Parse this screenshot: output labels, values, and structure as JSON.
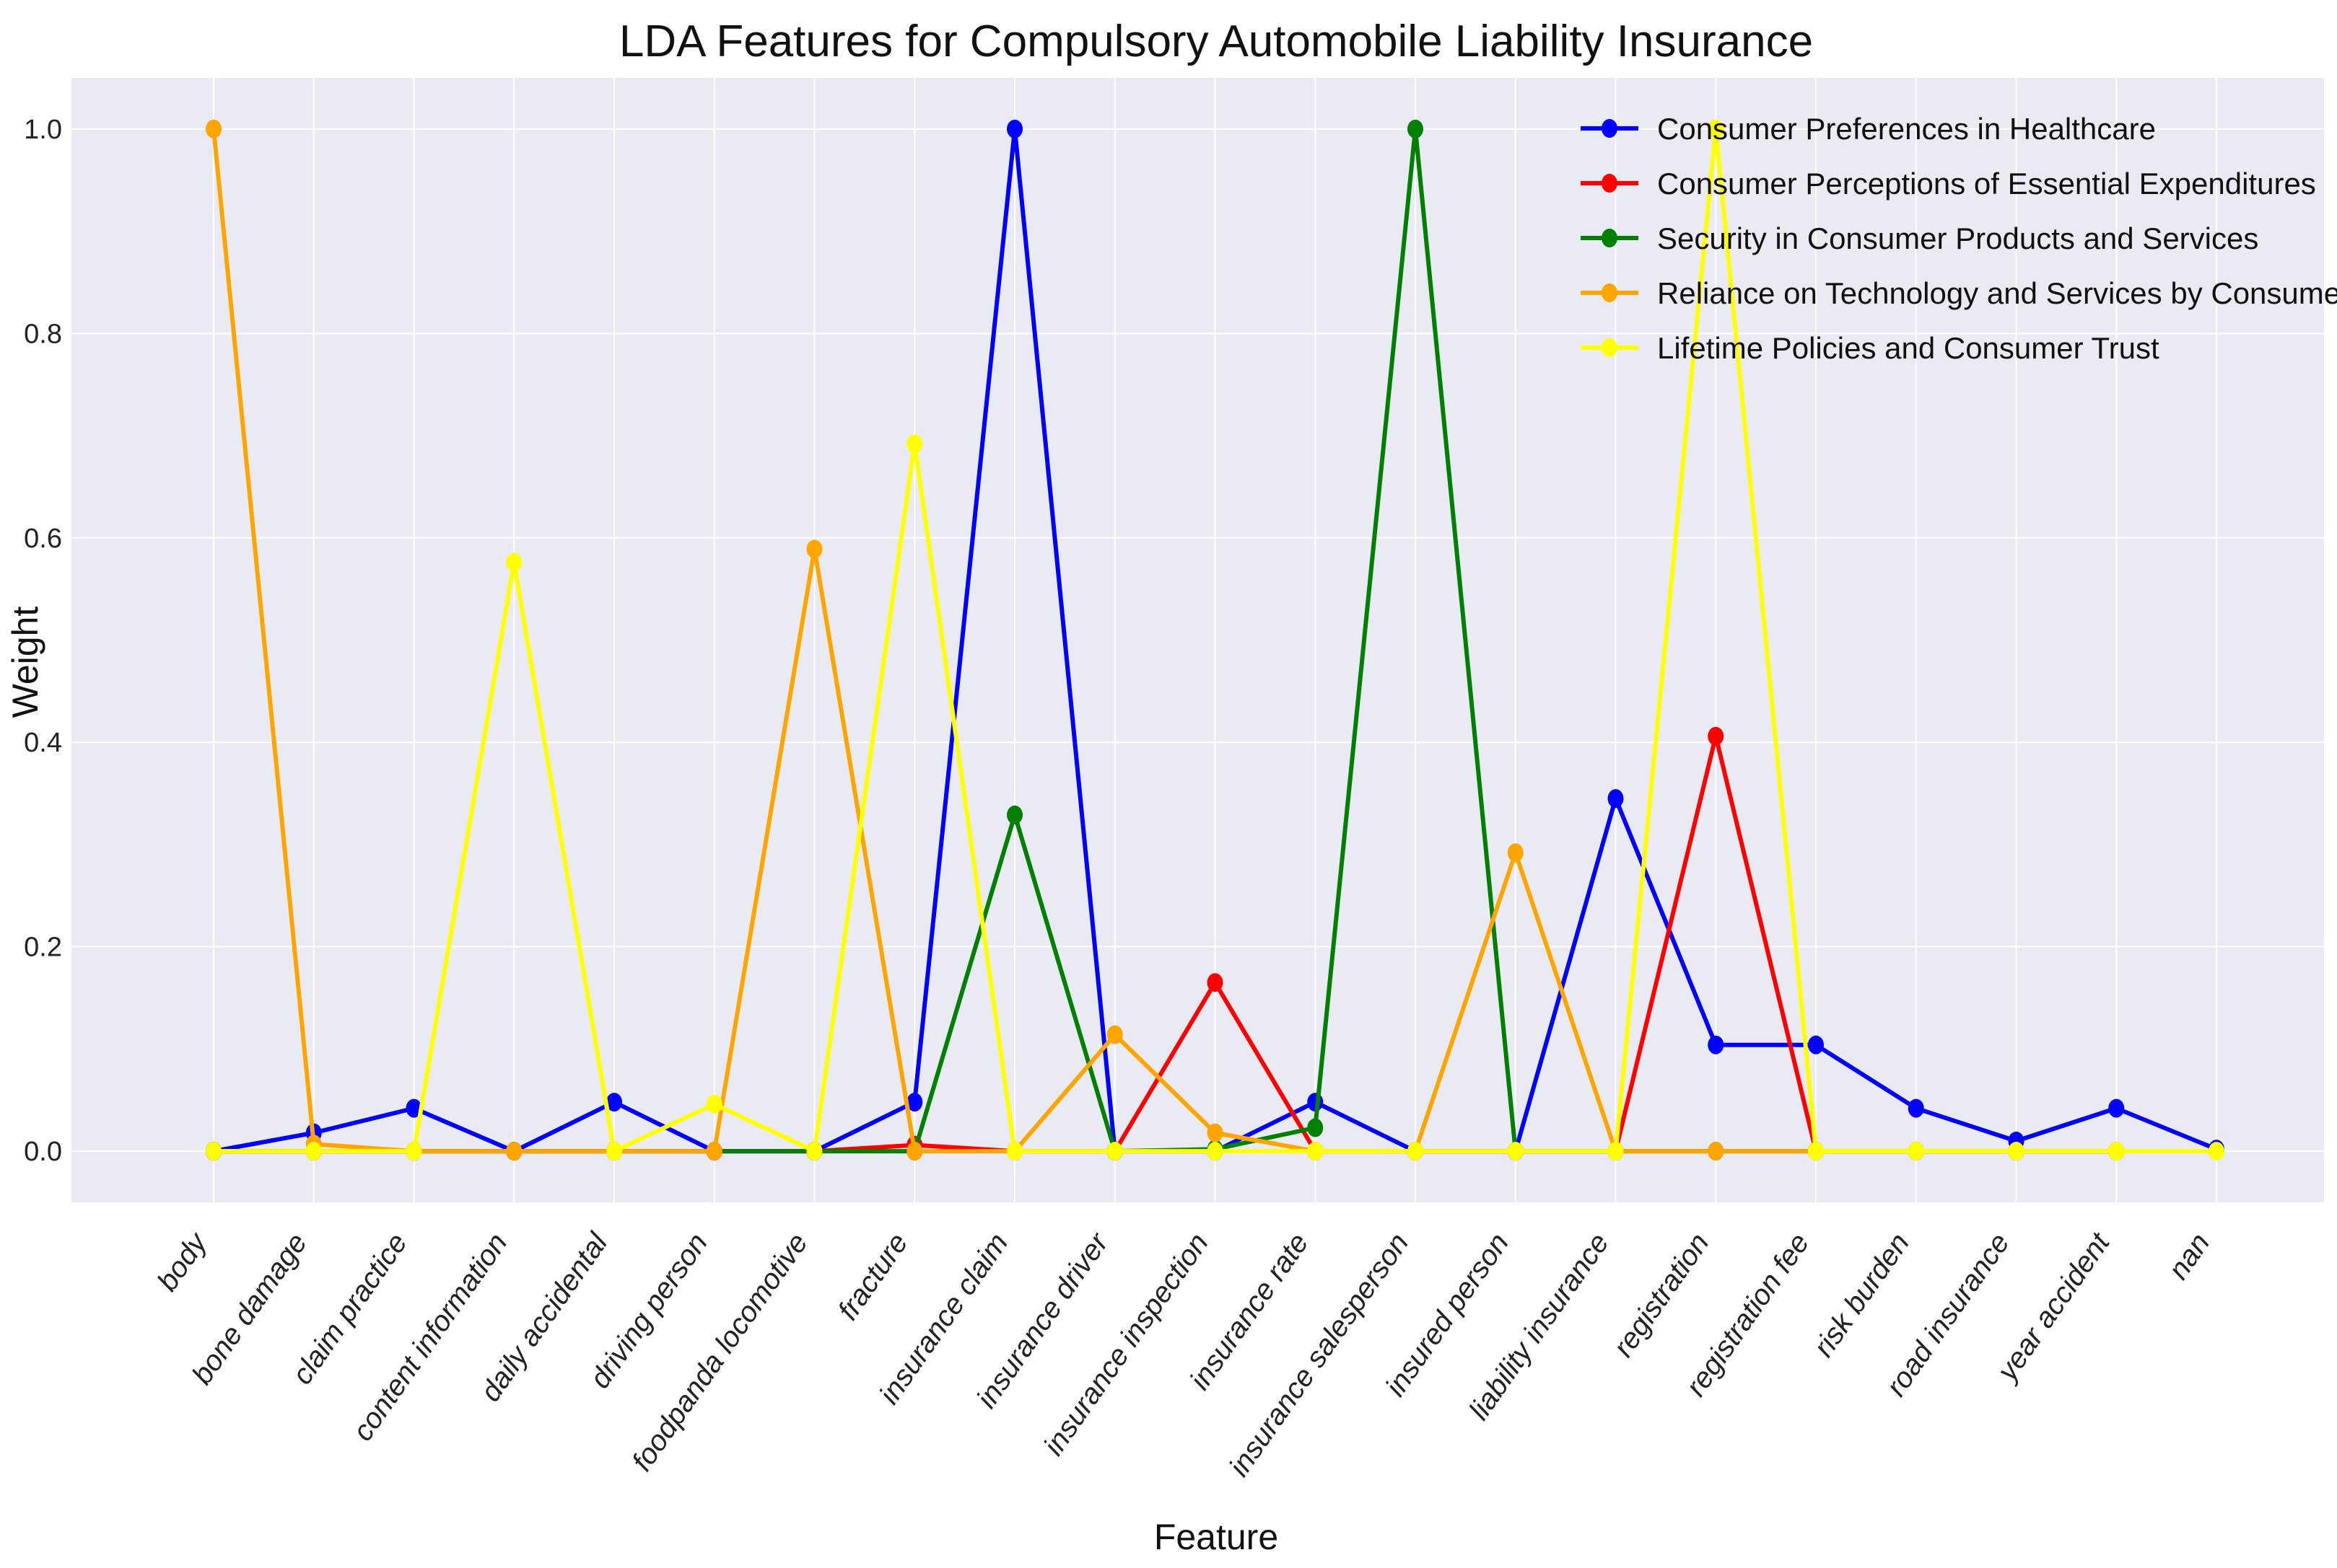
{
  "chart_data": {
    "type": "line",
    "title": "LDA Features for Compulsory Automobile Liability Insurance",
    "xlabel": "Feature",
    "ylabel": "Weight",
    "ylim": [
      -0.05,
      1.05
    ],
    "yticks": [
      "0.0",
      "0.2",
      "0.4",
      "0.6",
      "0.8",
      "1.0"
    ],
    "ytick_values": [
      0.0,
      0.2,
      0.4,
      0.6,
      0.8,
      1.0
    ],
    "grid": true,
    "legend_position": "top-right",
    "categories": [
      "body",
      "bone damage",
      "claim practice",
      "content information",
      "daily accidental",
      "driving person",
      "foodpanda locomotive",
      "fracture",
      "insurance claim",
      "insurance driver",
      "insurance inspection",
      "insurance rate",
      "insurance salesperson",
      "insured person",
      "liability insurance",
      "registration",
      "registration fee",
      "risk burden",
      "road insurance",
      "year accident",
      "nan"
    ],
    "series": [
      {
        "name": "Consumer Preferences in Healthcare",
        "color": "#0000ff",
        "values": [
          0.0,
          0.018,
          0.042,
          0.0,
          0.048,
          0.0,
          0.0,
          0.048,
          1.0,
          0.0,
          0.0,
          0.048,
          0.0,
          0.0,
          0.345,
          0.104,
          0.104,
          0.042,
          0.01,
          0.042,
          0.002
        ]
      },
      {
        "name": "Consumer Perceptions of Essential Expenditures",
        "color": "#ff0000",
        "values": [
          0.0,
          0.0,
          0.0,
          0.0,
          0.0,
          0.0,
          0.0,
          0.006,
          0.0,
          0.0,
          0.165,
          0.0,
          0.0,
          0.0,
          0.0,
          0.406,
          0.0,
          0.0,
          0.0,
          0.0,
          null
        ]
      },
      {
        "name": "Security in Consumer Products and Services",
        "color": "#008000",
        "values": [
          0.0,
          0.0,
          0.0,
          0.0,
          0.0,
          0.0,
          0.0,
          0.0,
          0.329,
          0.0,
          0.002,
          0.023,
          1.0,
          0.0,
          0.0,
          0.0,
          0.0,
          0.0,
          0.0,
          0.0,
          null
        ]
      },
      {
        "name": "Reliance on Technology and Services by Consumers",
        "color": "#ffa500",
        "values": [
          1.0,
          0.007,
          0.0,
          0.0,
          0.0,
          0.0,
          0.589,
          0.0,
          0.0,
          0.114,
          0.018,
          0.0,
          0.0,
          0.292,
          0.0,
          0.0,
          0.0,
          0.0,
          0.0,
          0.0,
          null
        ]
      },
      {
        "name": "Lifetime Policies and Consumer Trust",
        "color": "#ffff00",
        "values": [
          0.0,
          0.0,
          0.0,
          0.576,
          0.0,
          0.046,
          0.0,
          0.692,
          0.0,
          0.0,
          0.0,
          0.0,
          0.0,
          0.0,
          0.0,
          1.0,
          0.0,
          0.0,
          0.0,
          0.0,
          0.0
        ]
      }
    ]
  }
}
